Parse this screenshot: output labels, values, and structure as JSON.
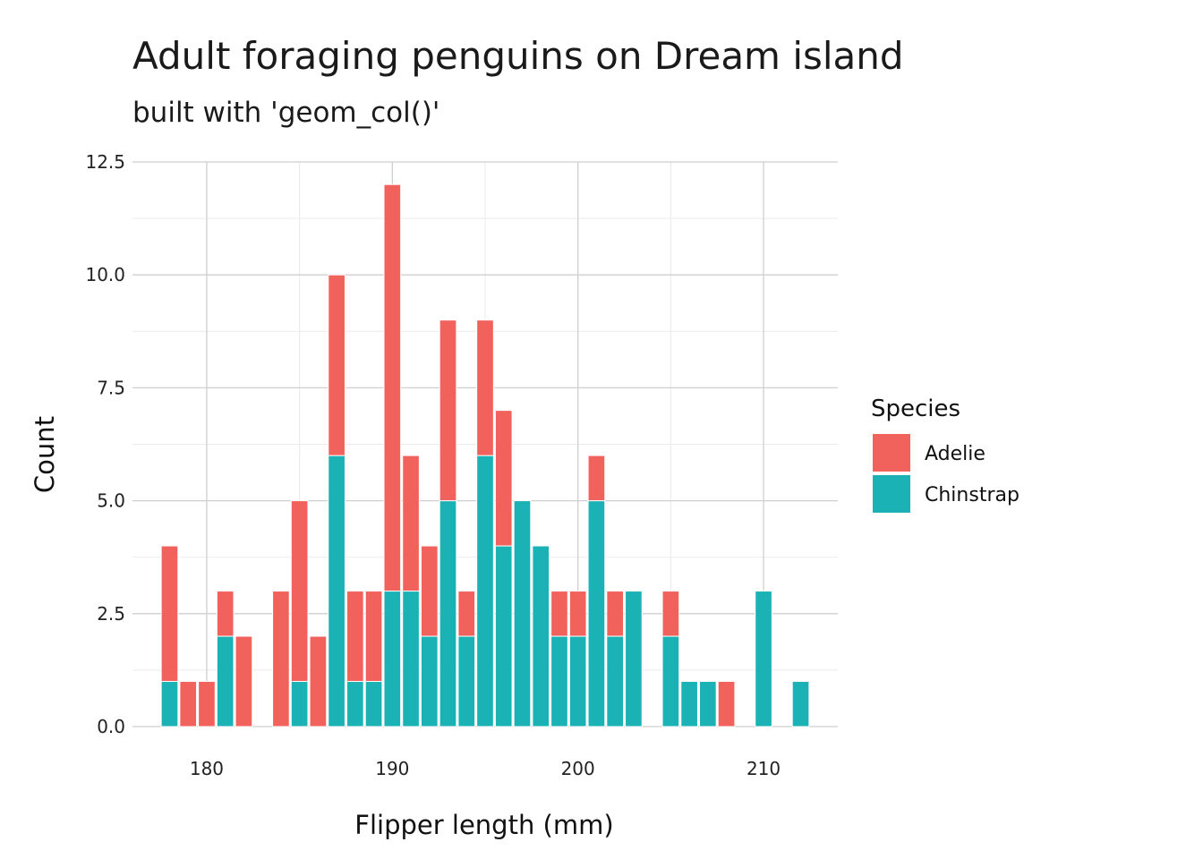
{
  "chart_data": {
    "type": "bar",
    "stacked": true,
    "title": "Adult foraging penguins on Dream island",
    "subtitle": "built with 'geom_col()'",
    "xlabel": "Flipper length (mm)",
    "ylabel": "Count",
    "x_ticks": [
      "180",
      "190",
      "200",
      "210"
    ],
    "y_ticks": [
      "0.0",
      "2.5",
      "5.0",
      "7.5",
      "10.0",
      "12.5"
    ],
    "xlim": [
      176,
      214
    ],
    "ylim": [
      0,
      12.5
    ],
    "grid": true,
    "legend": {
      "title": "Species",
      "position": "right"
    },
    "x": [
      178,
      179,
      180,
      181,
      182,
      184,
      185,
      186,
      187,
      188,
      189,
      190,
      191,
      192,
      193,
      194,
      195,
      196,
      197,
      198,
      199,
      200,
      201,
      202,
      203,
      205,
      206,
      207,
      208,
      210,
      212
    ],
    "series": [
      {
        "name": "Chinstrap",
        "color": "#1AB2B5",
        "values": [
          1,
          0,
          0,
          2,
          0,
          0,
          1,
          0,
          6,
          1,
          1,
          3,
          3,
          2,
          5,
          2,
          6,
          4,
          5,
          4,
          2,
          2,
          5,
          2,
          3,
          2,
          1,
          1,
          0,
          3,
          1
        ]
      },
      {
        "name": "Adelie",
        "color": "#F2625C",
        "values": [
          3,
          1,
          1,
          1,
          2,
          3,
          4,
          2,
          4,
          2,
          2,
          9,
          3,
          2,
          4,
          1,
          3,
          3,
          0,
          0,
          1,
          1,
          1,
          1,
          0,
          1,
          0,
          0,
          1,
          0,
          0
        ]
      }
    ]
  }
}
